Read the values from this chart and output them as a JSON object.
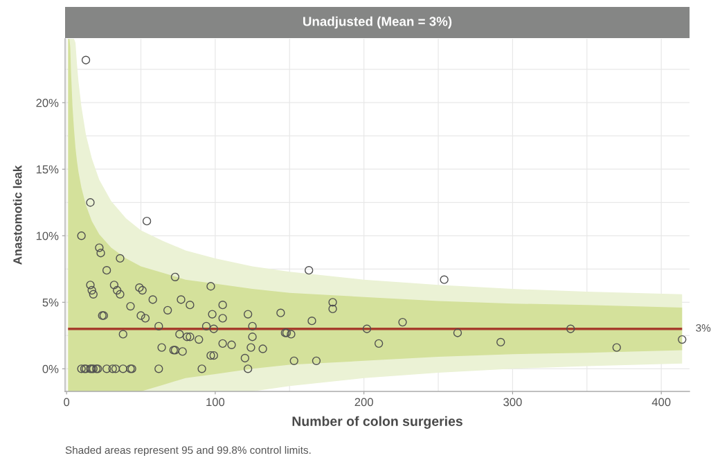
{
  "chart_data": {
    "type": "scatter",
    "title": "Unadjusted (Mean = 3%)",
    "xlabel": "Number of colon surgeries",
    "ylabel": "Anastomotic leak",
    "annotations": [
      "Shaded areas represent 95 and 99.8% control limits."
    ],
    "xlim": [
      -1,
      419
    ],
    "xticks": [
      0,
      {
        "value": 50,
        "label": null
      },
      100,
      {
        "value": 150,
        "label": null
      },
      200,
      {
        "value": 250,
        "label": null
      },
      300,
      {
        "value": 350,
        "label": null
      },
      400
    ],
    "ylim": [
      -1.7,
      24.8
    ],
    "yticks": [
      {
        "value": 0,
        "label": "0%"
      },
      {
        "value": 2.5,
        "label": null
      },
      {
        "value": 5,
        "label": "5%"
      },
      {
        "value": 7.5,
        "label": null
      },
      {
        "value": 10,
        "label": "10%"
      },
      {
        "value": 12.5,
        "label": null
      },
      {
        "value": 15,
        "label": "15%"
      },
      {
        "value": 17.5,
        "label": null
      },
      {
        "value": 20,
        "label": "20%"
      },
      {
        "value": 22.5,
        "label": null
      }
    ],
    "grid": true,
    "series": [
      {
        "type": "line",
        "name": "3%",
        "color": "#a63d2d",
        "x": [
          1,
          2,
          2.5,
          3,
          4,
          5,
          6,
          7,
          8,
          10,
          13,
          17,
          22,
          30,
          40,
          50,
          65,
          80,
          100,
          125,
          150,
          200,
          250,
          300,
          350,
          414
        ],
        "values": [
          3,
          3,
          3,
          3,
          3,
          3,
          3,
          3,
          3,
          3,
          3,
          3,
          3,
          3,
          3,
          3,
          3,
          3,
          3,
          3,
          3,
          3,
          3,
          3,
          3,
          3
        ],
        "lower": [
          -1.7,
          -1.7,
          -1.7,
          -1.7,
          -1.7,
          -1.7,
          -1.7,
          -1.7,
          -1.7,
          -1.7,
          -1.7,
          -1.7,
          -1.7,
          -1.7,
          -1.7,
          -1.7,
          -1.2,
          -0.7,
          -0.4,
          0.0,
          0.3,
          0.6,
          0.9,
          1.1,
          1.2,
          1.4
        ],
        "upper": [
          24.8,
          24.8,
          24.1,
          22.3,
          19.7,
          18.0,
          16.6,
          15.6,
          14.8,
          13.6,
          12.3,
          11.1,
          10.1,
          9.1,
          8.3,
          7.7,
          7.2,
          6.7,
          6.4,
          6.0,
          5.7,
          5.4,
          5.1,
          4.9,
          4.8,
          4.6
        ]
      },
      {
        "type": "line",
        "x": [
          2,
          2.5,
          3,
          4,
          5,
          6,
          7,
          8,
          10,
          13,
          17,
          22,
          30,
          40,
          50,
          65,
          80,
          100,
          125,
          150,
          200,
          250,
          300,
          350,
          414
        ],
        "values": [
          null,
          null,
          null,
          null,
          null,
          null,
          null,
          null,
          null,
          null,
          null,
          null,
          null,
          null,
          null,
          null,
          null,
          null,
          null,
          null,
          null,
          null,
          null,
          null,
          null
        ],
        "lower": [
          -1.7,
          -1.7,
          -1.7,
          -1.7,
          -1.7,
          -1.7,
          -1.7,
          -1.7,
          -1.7,
          -1.7,
          -1.7,
          -1.7,
          -1.7,
          -1.7,
          -1.7,
          -1.7,
          -1.7,
          -1.7,
          -1.7,
          -1.3,
          -0.7,
          -0.3,
          0.0,
          0.2,
          0.4
        ],
        "upper": [
          24.8,
          24.8,
          24.8,
          24.8,
          24.8,
          24.5,
          22.9,
          21.6,
          19.7,
          17.6,
          15.8,
          14.2,
          12.6,
          11.3,
          10.4,
          9.6,
          8.9,
          8.3,
          7.7,
          7.3,
          6.7,
          6.3,
          6.0,
          5.8,
          5.6
        ]
      },
      {
        "color": "#505050",
        "marker": "circle",
        "x": [
          13,
          16,
          10,
          54,
          22,
          23,
          36,
          27,
          73,
          97,
          16,
          17,
          18,
          32,
          34,
          36,
          49,
          51,
          58,
          77,
          83,
          105,
          43,
          68,
          24,
          25,
          50,
          53,
          98,
          105,
          62,
          94,
          99,
          38,
          76,
          81,
          83,
          89,
          105,
          111,
          64,
          72,
          73,
          78,
          97,
          99,
          10,
          12,
          13,
          16,
          17,
          18,
          20,
          21,
          27,
          31,
          33,
          38,
          43,
          44,
          62,
          91,
          122,
          163,
          254,
          179,
          179,
          122,
          144,
          165,
          125,
          202,
          226,
          147,
          148,
          151,
          263,
          125,
          124,
          132,
          210,
          120,
          153,
          168,
          292,
          339,
          370,
          414
        ],
        "values": [
          23.2,
          12.5,
          10.0,
          11.1,
          9.1,
          8.7,
          8.3,
          7.4,
          6.9,
          6.2,
          6.3,
          5.9,
          5.6,
          6.3,
          5.9,
          5.6,
          6.1,
          5.9,
          5.2,
          5.2,
          4.8,
          4.8,
          4.7,
          4.4,
          4.0,
          4.0,
          4.0,
          3.8,
          4.1,
          3.8,
          3.2,
          3.2,
          3.0,
          2.6,
          2.6,
          2.4,
          2.4,
          2.2,
          1.9,
          1.8,
          1.6,
          1.4,
          1.4,
          1.3,
          1.0,
          1.0,
          0,
          0,
          0,
          0,
          0,
          0,
          0,
          0,
          0,
          0,
          0,
          0,
          0,
          0,
          0,
          0,
          0,
          7.4,
          6.7,
          5.0,
          4.5,
          4.1,
          4.2,
          3.6,
          3.2,
          3.0,
          3.5,
          2.7,
          2.7,
          2.6,
          2.7,
          2.4,
          1.6,
          1.5,
          1.9,
          0.8,
          0.6,
          0.6,
          2.0,
          3.0,
          1.6,
          2.2
        ]
      }
    ]
  }
}
